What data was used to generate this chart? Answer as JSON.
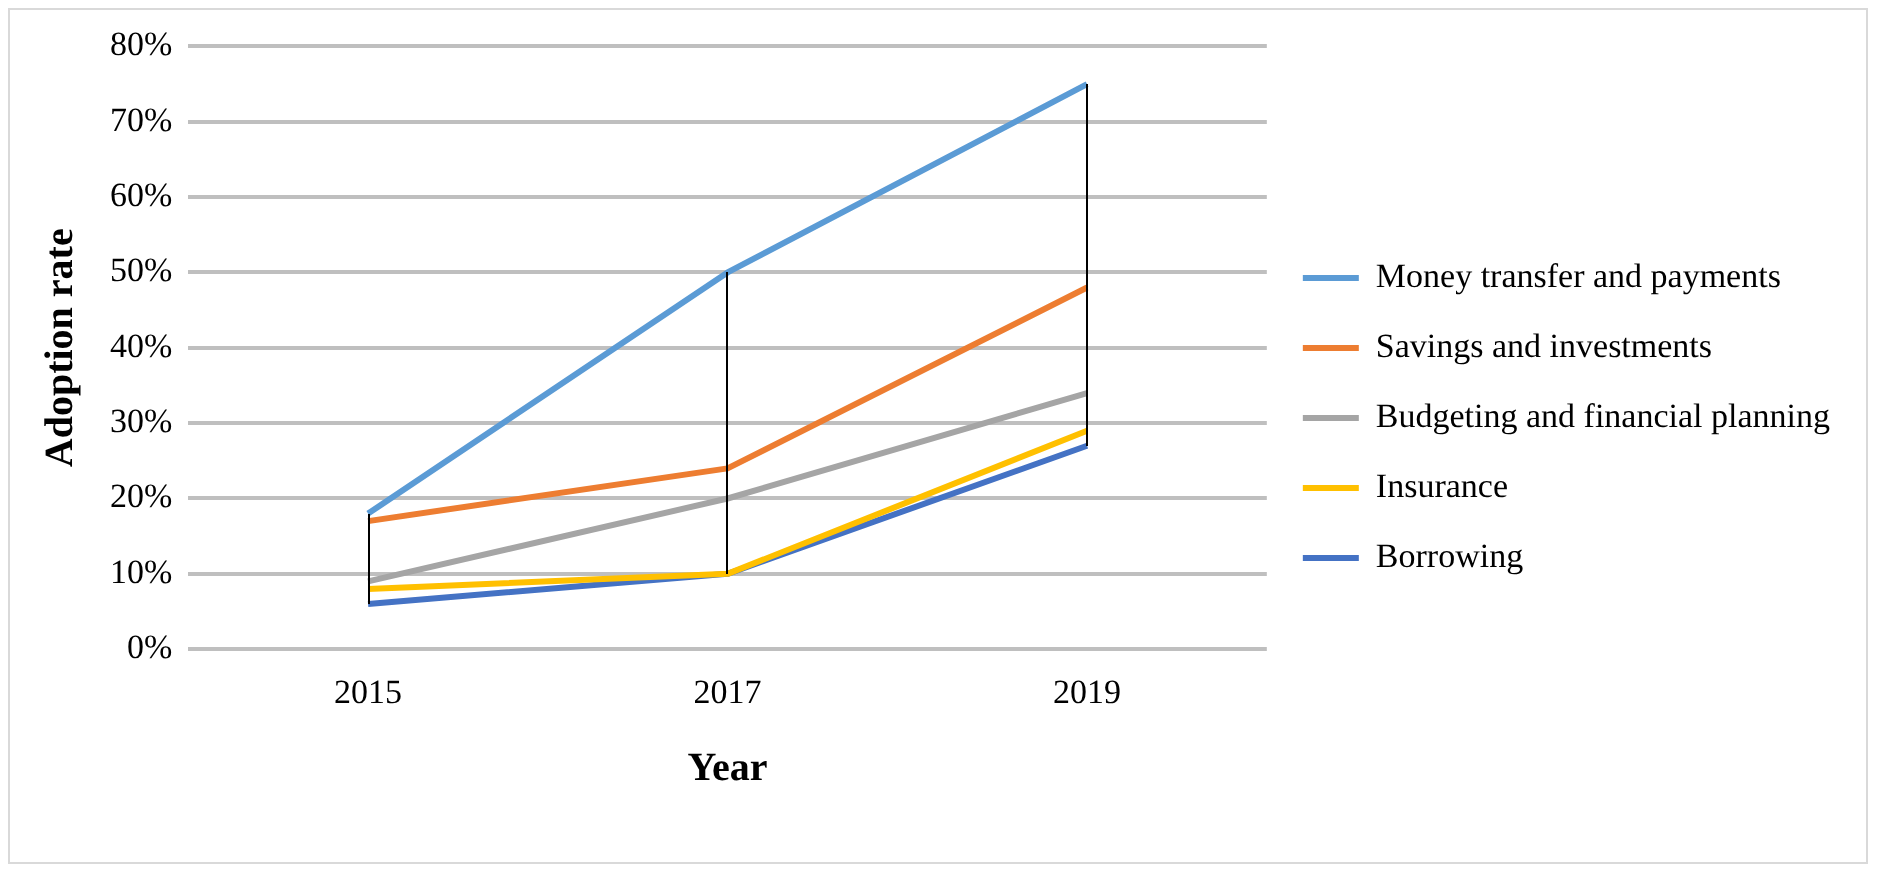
{
  "chart_data": {
    "type": "line",
    "xlabel": "Year",
    "ylabel": "Adoption rate",
    "categories": [
      "2015",
      "2017",
      "2019"
    ],
    "series": [
      {
        "name": "Money transfer and payments",
        "color": "#5b9bd5",
        "values": [
          18,
          50,
          75
        ]
      },
      {
        "name": "Savings and investments",
        "color": "#ed7d31",
        "values": [
          17,
          24,
          48
        ]
      },
      {
        "name": "Budgeting and financial planning",
        "color": "#a5a5a5",
        "values": [
          9,
          20,
          34
        ]
      },
      {
        "name": "Insurance",
        "color": "#ffc000",
        "values": [
          8,
          10,
          29
        ]
      },
      {
        "name": "Borrowing",
        "color": "#4472c4",
        "values": [
          6,
          10,
          27
        ]
      }
    ],
    "ylim": [
      0,
      80
    ],
    "yticks": [
      {
        "value": 0,
        "label": "0%"
      },
      {
        "value": 10,
        "label": "10%"
      },
      {
        "value": 20,
        "label": "20%"
      },
      {
        "value": 30,
        "label": "30%"
      },
      {
        "value": 40,
        "label": "40%"
      },
      {
        "value": 50,
        "label": "50%"
      },
      {
        "value": 60,
        "label": "60%"
      },
      {
        "value": 70,
        "label": "70%"
      },
      {
        "value": 80,
        "label": "80%"
      }
    ],
    "grid": "y",
    "legend": "right",
    "marker": "none",
    "line_style": "solid"
  }
}
